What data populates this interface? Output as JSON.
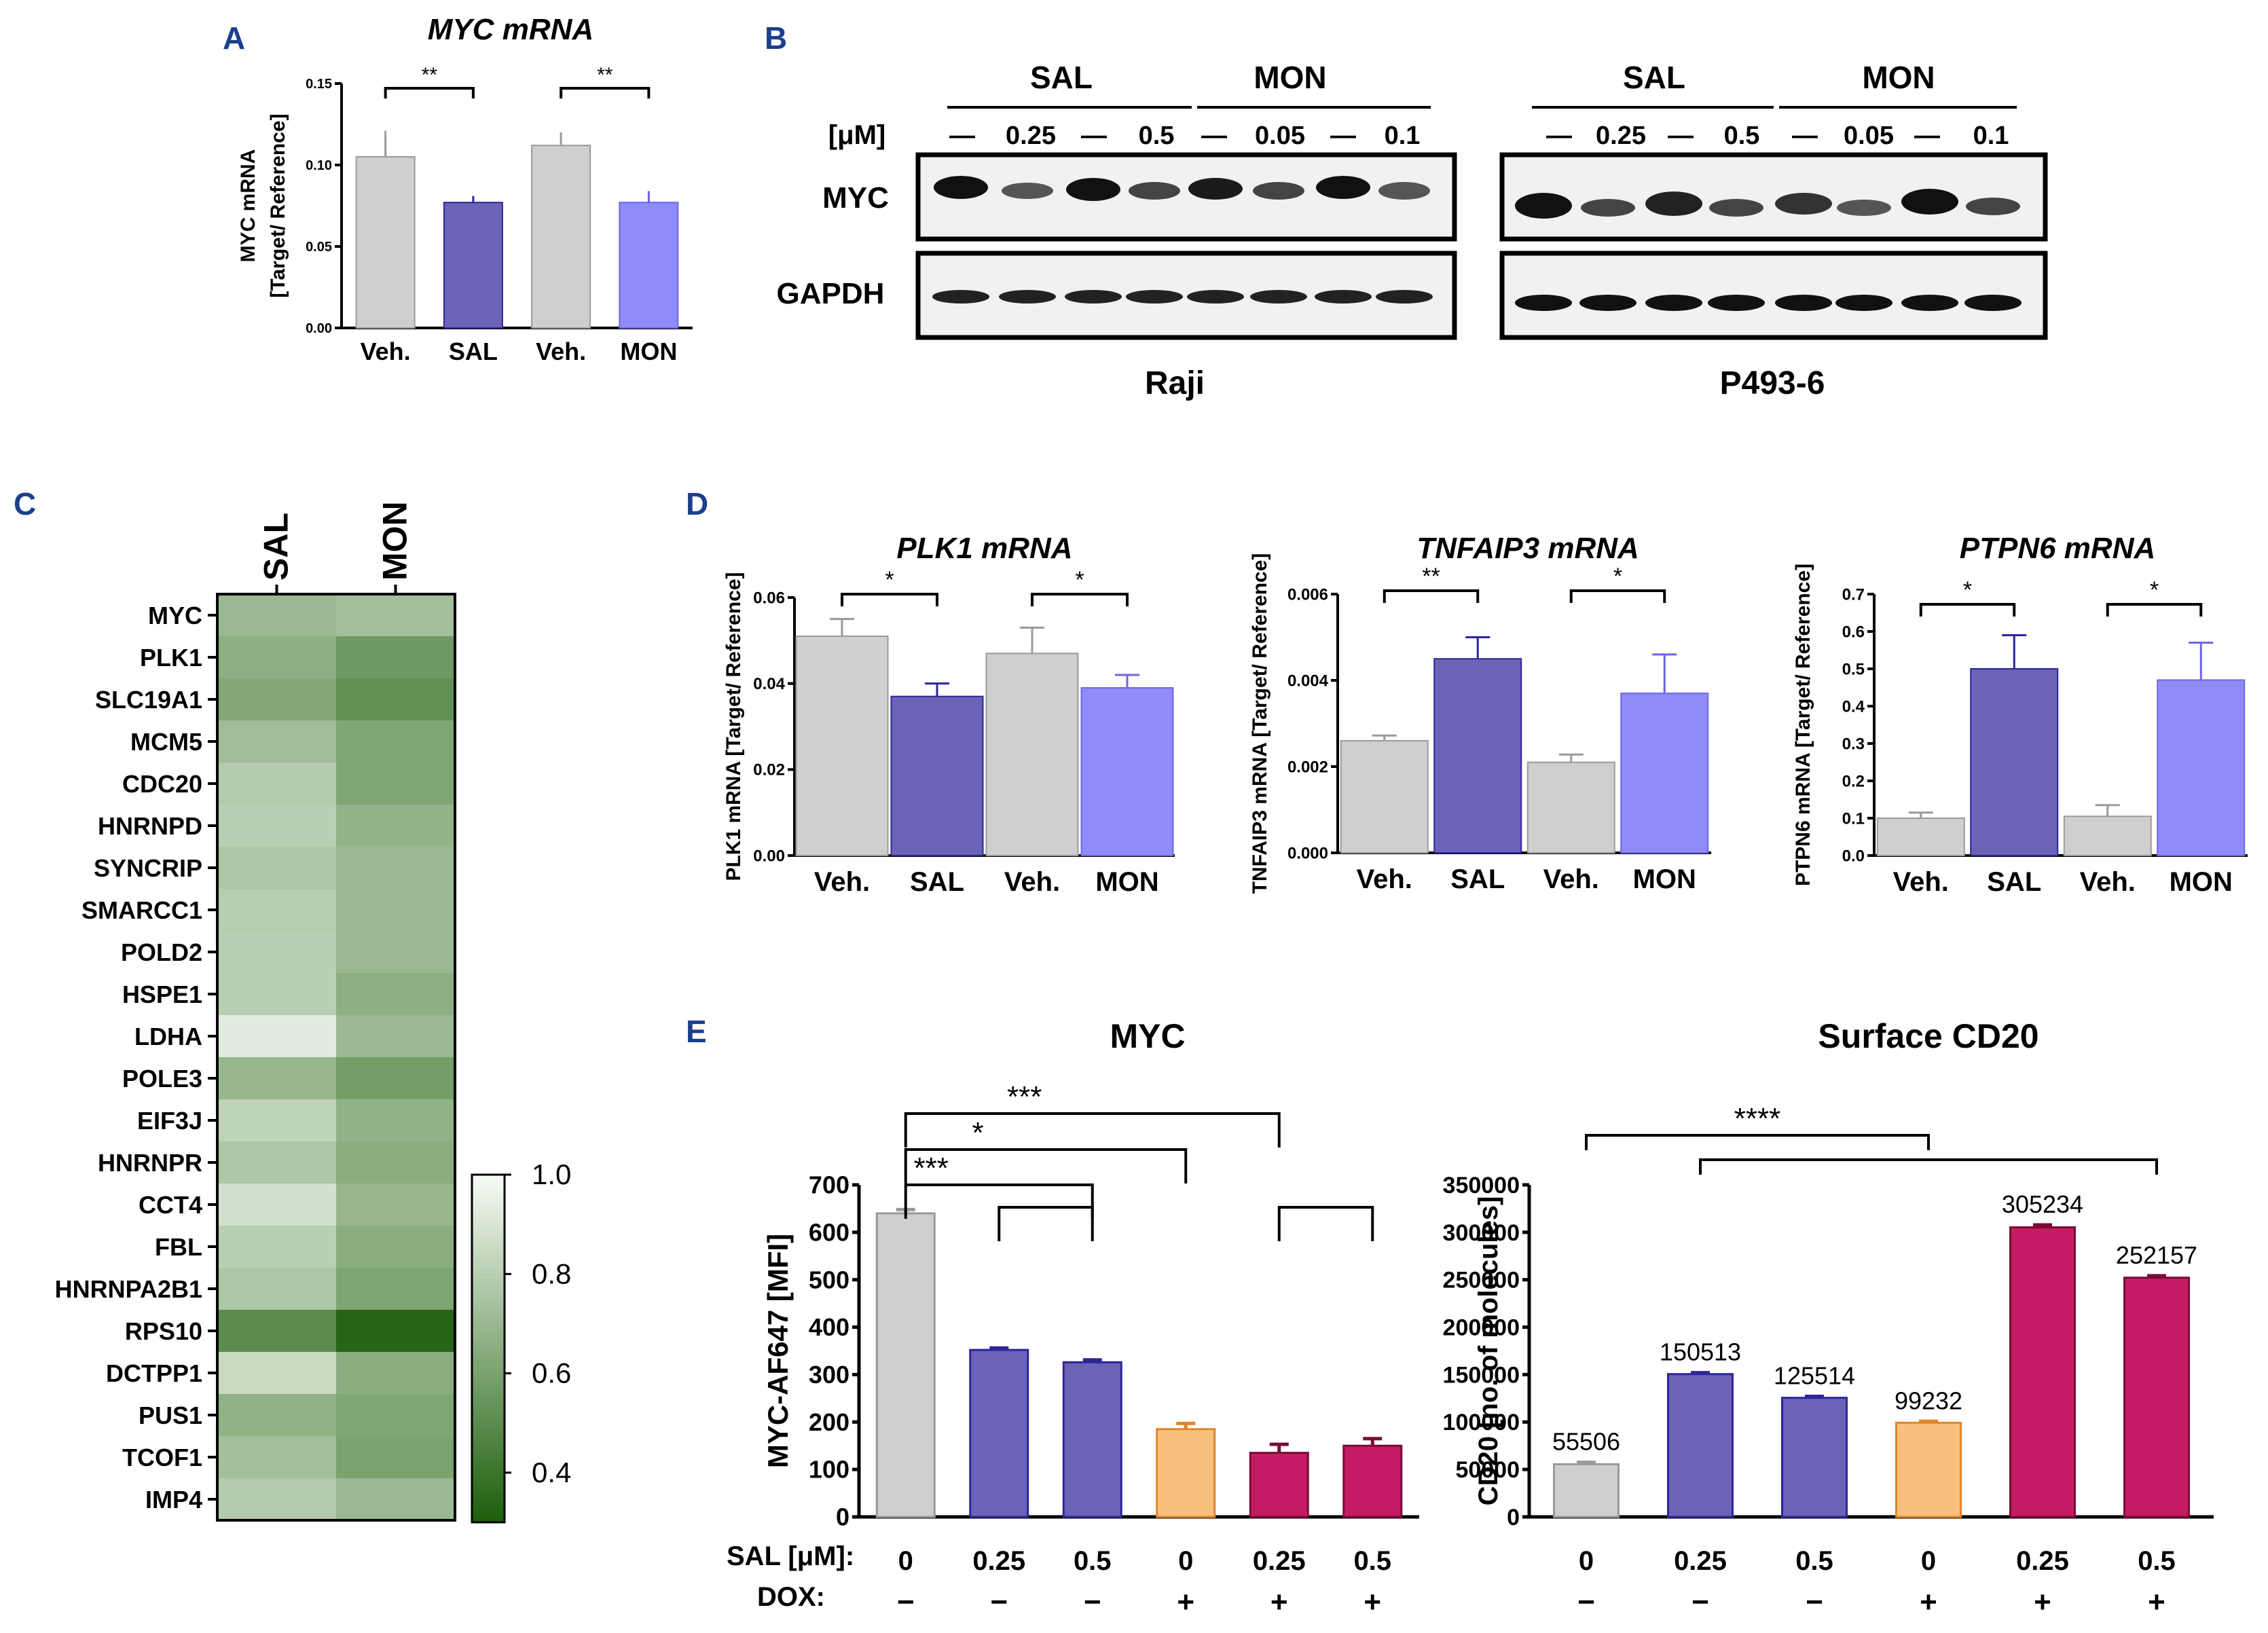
{
  "colors": {
    "veh": "#cfcfcf",
    "veh_edge": "#9a9a9a",
    "sal": "#6b63b5",
    "sal_edge": "#2e249a",
    "mon": "#8f8cfa",
    "mon_edge": "#6b66e8",
    "dox": "#f7c07e",
    "dox_edge": "#e0862a",
    "combo": "#c41c64",
    "combo_edge": "#7a0a36"
  },
  "panel_labels": {
    "A": "A",
    "B": "B",
    "C": "C",
    "D": "D",
    "E": "E"
  },
  "blot": {
    "bands": [
      "MYC",
      "GAPDH"
    ],
    "unit_label": "[μM]",
    "dash": "—",
    "groups": [
      {
        "cell_line": "Raji",
        "drugs": [
          {
            "name": "SAL",
            "doses": [
              "—",
              "0.25",
              "—",
              "0.5"
            ]
          },
          {
            "name": "MON",
            "doses": [
              "—",
              "0.05",
              "—",
              "0.1"
            ]
          }
        ]
      },
      {
        "cell_line": "P493-6",
        "drugs": [
          {
            "name": "SAL",
            "doses": [
              "—",
              "0.25",
              "—",
              "0.5"
            ]
          },
          {
            "name": "MON",
            "doses": [
              "—",
              "0.05",
              "—",
              "0.1"
            ]
          }
        ]
      }
    ]
  },
  "chart_data": [
    {
      "id": "A",
      "type": "bar",
      "title": "MYC mRNA",
      "ylabel": "MYC mRNA",
      "ylabel2": "[Target/ Reference]",
      "ylim": [
        0,
        0.15
      ],
      "yticks": [
        "0.00",
        "0.05",
        "0.10",
        "0.15"
      ],
      "ytick_values": [
        0,
        0.05,
        0.1,
        0.15
      ],
      "categories": [
        "Veh.",
        "SAL",
        "Veh.",
        "MON"
      ],
      "values": [
        0.105,
        0.077,
        0.112,
        0.077
      ],
      "errors": [
        0.016,
        0.004,
        0.008,
        0.007
      ],
      "color_keys": [
        "veh",
        "sal",
        "veh",
        "mon"
      ],
      "significance": [
        {
          "from": 0,
          "to": 1,
          "label": "**"
        },
        {
          "from": 2,
          "to": 3,
          "label": "**"
        }
      ]
    },
    {
      "id": "D1",
      "type": "bar",
      "title": "PLK1 mRNA",
      "ylabel": "PLK1 mRNA [Target/ Reference]",
      "ylim": [
        0,
        0.06
      ],
      "yticks": [
        "0.00",
        "0.02",
        "0.04",
        "0.06"
      ],
      "ytick_values": [
        0,
        0.02,
        0.04,
        0.06
      ],
      "categories": [
        "Veh.",
        "SAL",
        "Veh.",
        "MON"
      ],
      "values": [
        0.051,
        0.037,
        0.047,
        0.039
      ],
      "errors": [
        0.004,
        0.003,
        0.006,
        0.003
      ],
      "color_keys": [
        "veh",
        "sal",
        "veh",
        "mon"
      ],
      "significance": [
        {
          "from": 0,
          "to": 1,
          "label": "*"
        },
        {
          "from": 2,
          "to": 3,
          "label": "*"
        }
      ]
    },
    {
      "id": "D2",
      "type": "bar",
      "title": "TNFAIP3 mRNA",
      "ylabel": "TNFAIP3 mRNA [Target/ Reference]",
      "ylim": [
        0,
        0.006
      ],
      "yticks": [
        "0.000",
        "0.002",
        "0.004",
        "0.006"
      ],
      "ytick_values": [
        0,
        0.002,
        0.004,
        0.006
      ],
      "categories": [
        "Veh.",
        "SAL",
        "Veh.",
        "MON"
      ],
      "values": [
        0.0026,
        0.0045,
        0.0021,
        0.0037
      ],
      "errors": [
        0.00012,
        0.0005,
        0.00018,
        0.0009
      ],
      "color_keys": [
        "veh",
        "sal",
        "veh",
        "mon"
      ],
      "significance": [
        {
          "from": 0,
          "to": 1,
          "label": "**"
        },
        {
          "from": 2,
          "to": 3,
          "label": "*"
        }
      ]
    },
    {
      "id": "D3",
      "type": "bar",
      "title": "PTPN6 mRNA",
      "ylabel": "PTPN6 mRNA [Target/ Reference]",
      "ylim": [
        0,
        0.7
      ],
      "yticks": [
        "0.0",
        "0.1",
        "0.2",
        "0.3",
        "0.4",
        "0.5",
        "0.6",
        "0.7"
      ],
      "ytick_values": [
        0,
        0.1,
        0.2,
        0.3,
        0.4,
        0.5,
        0.6,
        0.7
      ],
      "categories": [
        "Veh.",
        "SAL",
        "Veh.",
        "MON"
      ],
      "values": [
        0.1,
        0.5,
        0.105,
        0.47
      ],
      "errors": [
        0.015,
        0.09,
        0.03,
        0.1
      ],
      "color_keys": [
        "veh",
        "sal",
        "veh",
        "mon"
      ],
      "significance": [
        {
          "from": 0,
          "to": 1,
          "label": "*"
        },
        {
          "from": 2,
          "to": 3,
          "label": "*"
        }
      ]
    },
    {
      "id": "E1",
      "type": "bar",
      "title": "MYC",
      "ylabel": "MYC-AF647 [MFI]",
      "ylim": [
        0,
        700
      ],
      "yticks": [
        "0",
        "100",
        "200",
        "300",
        "400",
        "500",
        "600",
        "700"
      ],
      "ytick_values": [
        0,
        100,
        200,
        300,
        400,
        500,
        600,
        700
      ],
      "categories": [
        "0",
        "0.25",
        "0.5",
        "0",
        "0.25",
        "0.5"
      ],
      "dox": [
        "−",
        "−",
        "−",
        "+",
        "+",
        "+"
      ],
      "values": [
        640,
        352,
        326,
        185,
        135,
        150
      ],
      "errors": [
        8,
        4,
        5,
        12,
        18,
        15
      ],
      "color_keys": [
        "veh",
        "sal",
        "sal",
        "dox",
        "combo",
        "combo"
      ],
      "significance": [
        {
          "from": 0,
          "to": 4,
          "label": "***"
        },
        {
          "from": 0,
          "to": 3,
          "label": "*"
        },
        {
          "from": 0,
          "to": 2,
          "label": "***"
        }
      ]
    },
    {
      "id": "E2",
      "type": "bar",
      "title": "Surface CD20",
      "ylabel": "CD20 [no. of molecules]",
      "ylim": [
        0,
        350000
      ],
      "yticks": [
        "0",
        "50000",
        "100000",
        "150000",
        "200000",
        "250000",
        "300000",
        "350000"
      ],
      "ytick_values": [
        0,
        50000,
        100000,
        150000,
        200000,
        250000,
        300000,
        350000
      ],
      "categories": [
        "0",
        "0.25",
        "0.5",
        "0",
        "0.25",
        "0.5"
      ],
      "dox": [
        "−",
        "−",
        "−",
        "+",
        "+",
        "+"
      ],
      "values": [
        55506,
        150513,
        125514,
        99232,
        305234,
        252157
      ],
      "value_labels": [
        "55506",
        "150513",
        "125514",
        "99232",
        "305234",
        "252157"
      ],
      "errors": [
        2000,
        1500,
        1500,
        1500,
        2500,
        2000
      ],
      "color_keys": [
        "veh",
        "sal",
        "sal",
        "dox",
        "combo",
        "combo"
      ],
      "significance": [
        {
          "from": 0,
          "to": 3,
          "label": "****"
        }
      ]
    },
    {
      "id": "C",
      "type": "heatmap",
      "columns": [
        "SAL",
        "MON"
      ],
      "rows": [
        "MYC",
        "PLK1",
        "SLC19A1",
        "MCM5",
        "CDC20",
        "HNRNPD",
        "SYNCRIP",
        "SMARCC1",
        "POLD2",
        "HSPE1",
        "LDHA",
        "POLE3",
        "EIF3J",
        "HNRNPR",
        "CCT4",
        "FBL",
        "HNRNPA2B1",
        "RPS10",
        "DCTPP1",
        "PUS1",
        "TCOF1",
        "IMP4"
      ],
      "values": [
        [
          0.7,
          0.73
        ],
        [
          0.66,
          0.56
        ],
        [
          0.63,
          0.52
        ],
        [
          0.72,
          0.62
        ],
        [
          0.78,
          0.62
        ],
        [
          0.8,
          0.68
        ],
        [
          0.76,
          0.7
        ],
        [
          0.79,
          0.7
        ],
        [
          0.8,
          0.7
        ],
        [
          0.8,
          0.66
        ],
        [
          0.93,
          0.7
        ],
        [
          0.69,
          0.58
        ],
        [
          0.82,
          0.67
        ],
        [
          0.76,
          0.65
        ],
        [
          0.88,
          0.69
        ],
        [
          0.8,
          0.65
        ],
        [
          0.76,
          0.61
        ],
        [
          0.5,
          0.33
        ],
        [
          0.85,
          0.65
        ],
        [
          0.67,
          0.62
        ],
        [
          0.73,
          0.6
        ],
        [
          0.78,
          0.7
        ]
      ],
      "colorbar_ticks": [
        "1.0",
        "0.8",
        "0.6",
        "0.4"
      ],
      "colorbar_values": [
        1.0,
        0.8,
        0.6,
        0.4
      ],
      "colorbar_range": [
        0.3,
        1.0
      ]
    }
  ],
  "e_axis": {
    "sal_label": "SAL [μM]:",
    "dox_label": "DOX:"
  }
}
